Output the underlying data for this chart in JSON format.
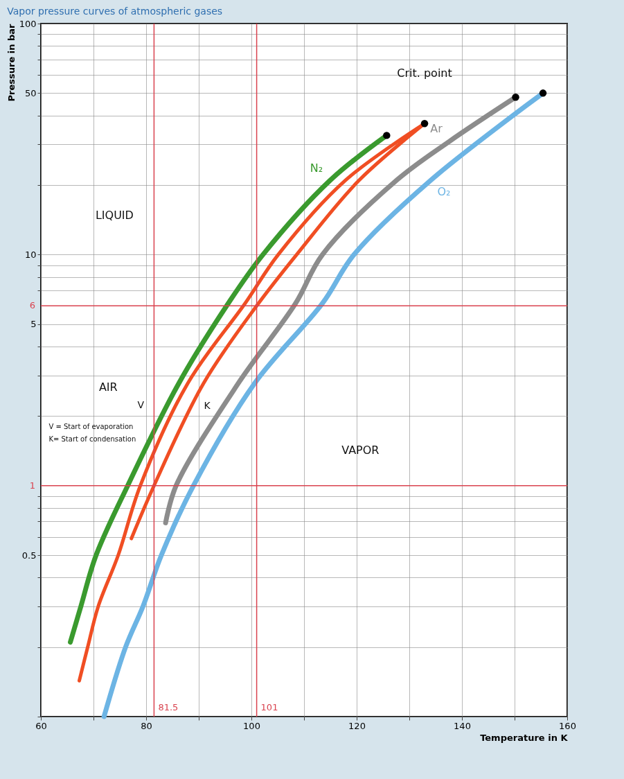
{
  "chart_data": {
    "type": "line",
    "title": "Vapor pressure curves of atmospheric gases",
    "xlabel": "Temperature in K",
    "ylabel": "Pressure in bar",
    "log": "y",
    "grid": true,
    "xlim": [
      60,
      160
    ],
    "xticks": [
      60,
      {
        "value": 70,
        "label": null
      },
      80,
      {
        "value": 90,
        "label": null
      },
      100,
      {
        "value": 110,
        "label": null
      },
      120,
      {
        "value": 130,
        "label": null
      },
      140,
      {
        "value": 150,
        "label": null
      },
      160
    ],
    "ylim": [
      0.1,
      100
    ],
    "yticks": [
      {
        "value": 0.1,
        "label": null
      },
      {
        "value": 0.2,
        "label": null
      },
      {
        "value": 0.3,
        "label": null
      },
      {
        "value": 0.4,
        "label": null
      },
      0.5,
      {
        "value": 0.6,
        "label": null
      },
      {
        "value": 0.7,
        "label": null
      },
      {
        "value": 0.8,
        "label": null
      },
      {
        "value": 0.9,
        "label": null
      },
      {
        "value": 2,
        "label": null
      },
      {
        "value": 3,
        "label": null
      },
      {
        "value": 4,
        "label": null
      },
      5,
      {
        "value": 7,
        "label": null
      },
      {
        "value": 8,
        "label": null
      },
      {
        "value": 9,
        "label": null
      },
      10,
      {
        "value": 20,
        "label": null
      },
      {
        "value": 30,
        "label": null
      },
      {
        "value": 40,
        "label": null
      },
      50,
      {
        "value": 60,
        "label": null
      },
      {
        "value": 70,
        "label": null
      },
      {
        "value": 80,
        "label": null
      },
      {
        "value": 90,
        "label": null
      },
      100
    ],
    "series": [
      {
        "name": "N₂",
        "color": "#3a9a2e",
        "x": [
          65.6,
          67.6,
          70.5,
          76.5,
          86.2,
          95.6,
          102.2,
          114.9,
          125.7
        ],
        "values": [
          0.21,
          0.3,
          0.5,
          1,
          2.77,
          6.15,
          10,
          20.9,
          32.8
        ]
      },
      {
        "color": "#f04e23",
        "x": [
          67.3,
          68.9,
          70.9,
          74.7,
          78.9,
          87.9,
          98.8,
          105.1,
          117.8,
          132.9
        ],
        "values": [
          0.143,
          0.2,
          0.3,
          0.5,
          1,
          2.77,
          6.15,
          10,
          20.9,
          36.9
        ]
      },
      {
        "color": "#f04e23",
        "x": [
          77.2,
          81.5,
          90.9,
          101,
          108.6,
          120.4,
          132.9
        ],
        "values": [
          0.59,
          1,
          2.77,
          6,
          10,
          20.9,
          36.9
        ]
      },
      {
        "name": "Ar",
        "color": "#8c8c8c",
        "x": [
          83.7,
          85.7,
          97.5,
          108.4,
          113.5,
          127.5,
          137.6,
          150.2
        ],
        "values": [
          0.69,
          1,
          2.77,
          6.15,
          10,
          20.9,
          30.9,
          48
        ]
      },
      {
        "name": "O₂",
        "color": "#6cb4e4",
        "x": [
          72.0,
          76.1,
          79.4,
          82.9,
          89.0,
          100.6,
          113.5,
          119.5,
          134.0,
          155.4
        ],
        "values": [
          0.1,
          0.2,
          0.3,
          0.5,
          1,
          2.77,
          6.15,
          10,
          20.9,
          50
        ]
      },
      {
        "type": "scatter",
        "marker": "circle",
        "color": "#000000",
        "x": [
          125.7,
          132.9,
          150.2,
          155.4
        ],
        "values": [
          32.8,
          36.9,
          48,
          50
        ]
      }
    ],
    "ref_lines": [
      {
        "axis": "x",
        "value": 81.5,
        "label": "81.5",
        "color": "#d9434f"
      },
      {
        "axis": "x",
        "value": 101,
        "label": "101",
        "color": "#d9434f"
      },
      {
        "axis": "y",
        "value": 1,
        "label": "1",
        "color": "#d9434f"
      },
      {
        "axis": "y",
        "value": 6,
        "label": "6",
        "color": "#d9434f"
      }
    ],
    "annotations": [
      "Crit. point",
      "LIQUID",
      "VAPOR",
      "AIR",
      "V",
      "K",
      "V = Start of evaporation",
      "K= Start of condensation"
    ]
  }
}
